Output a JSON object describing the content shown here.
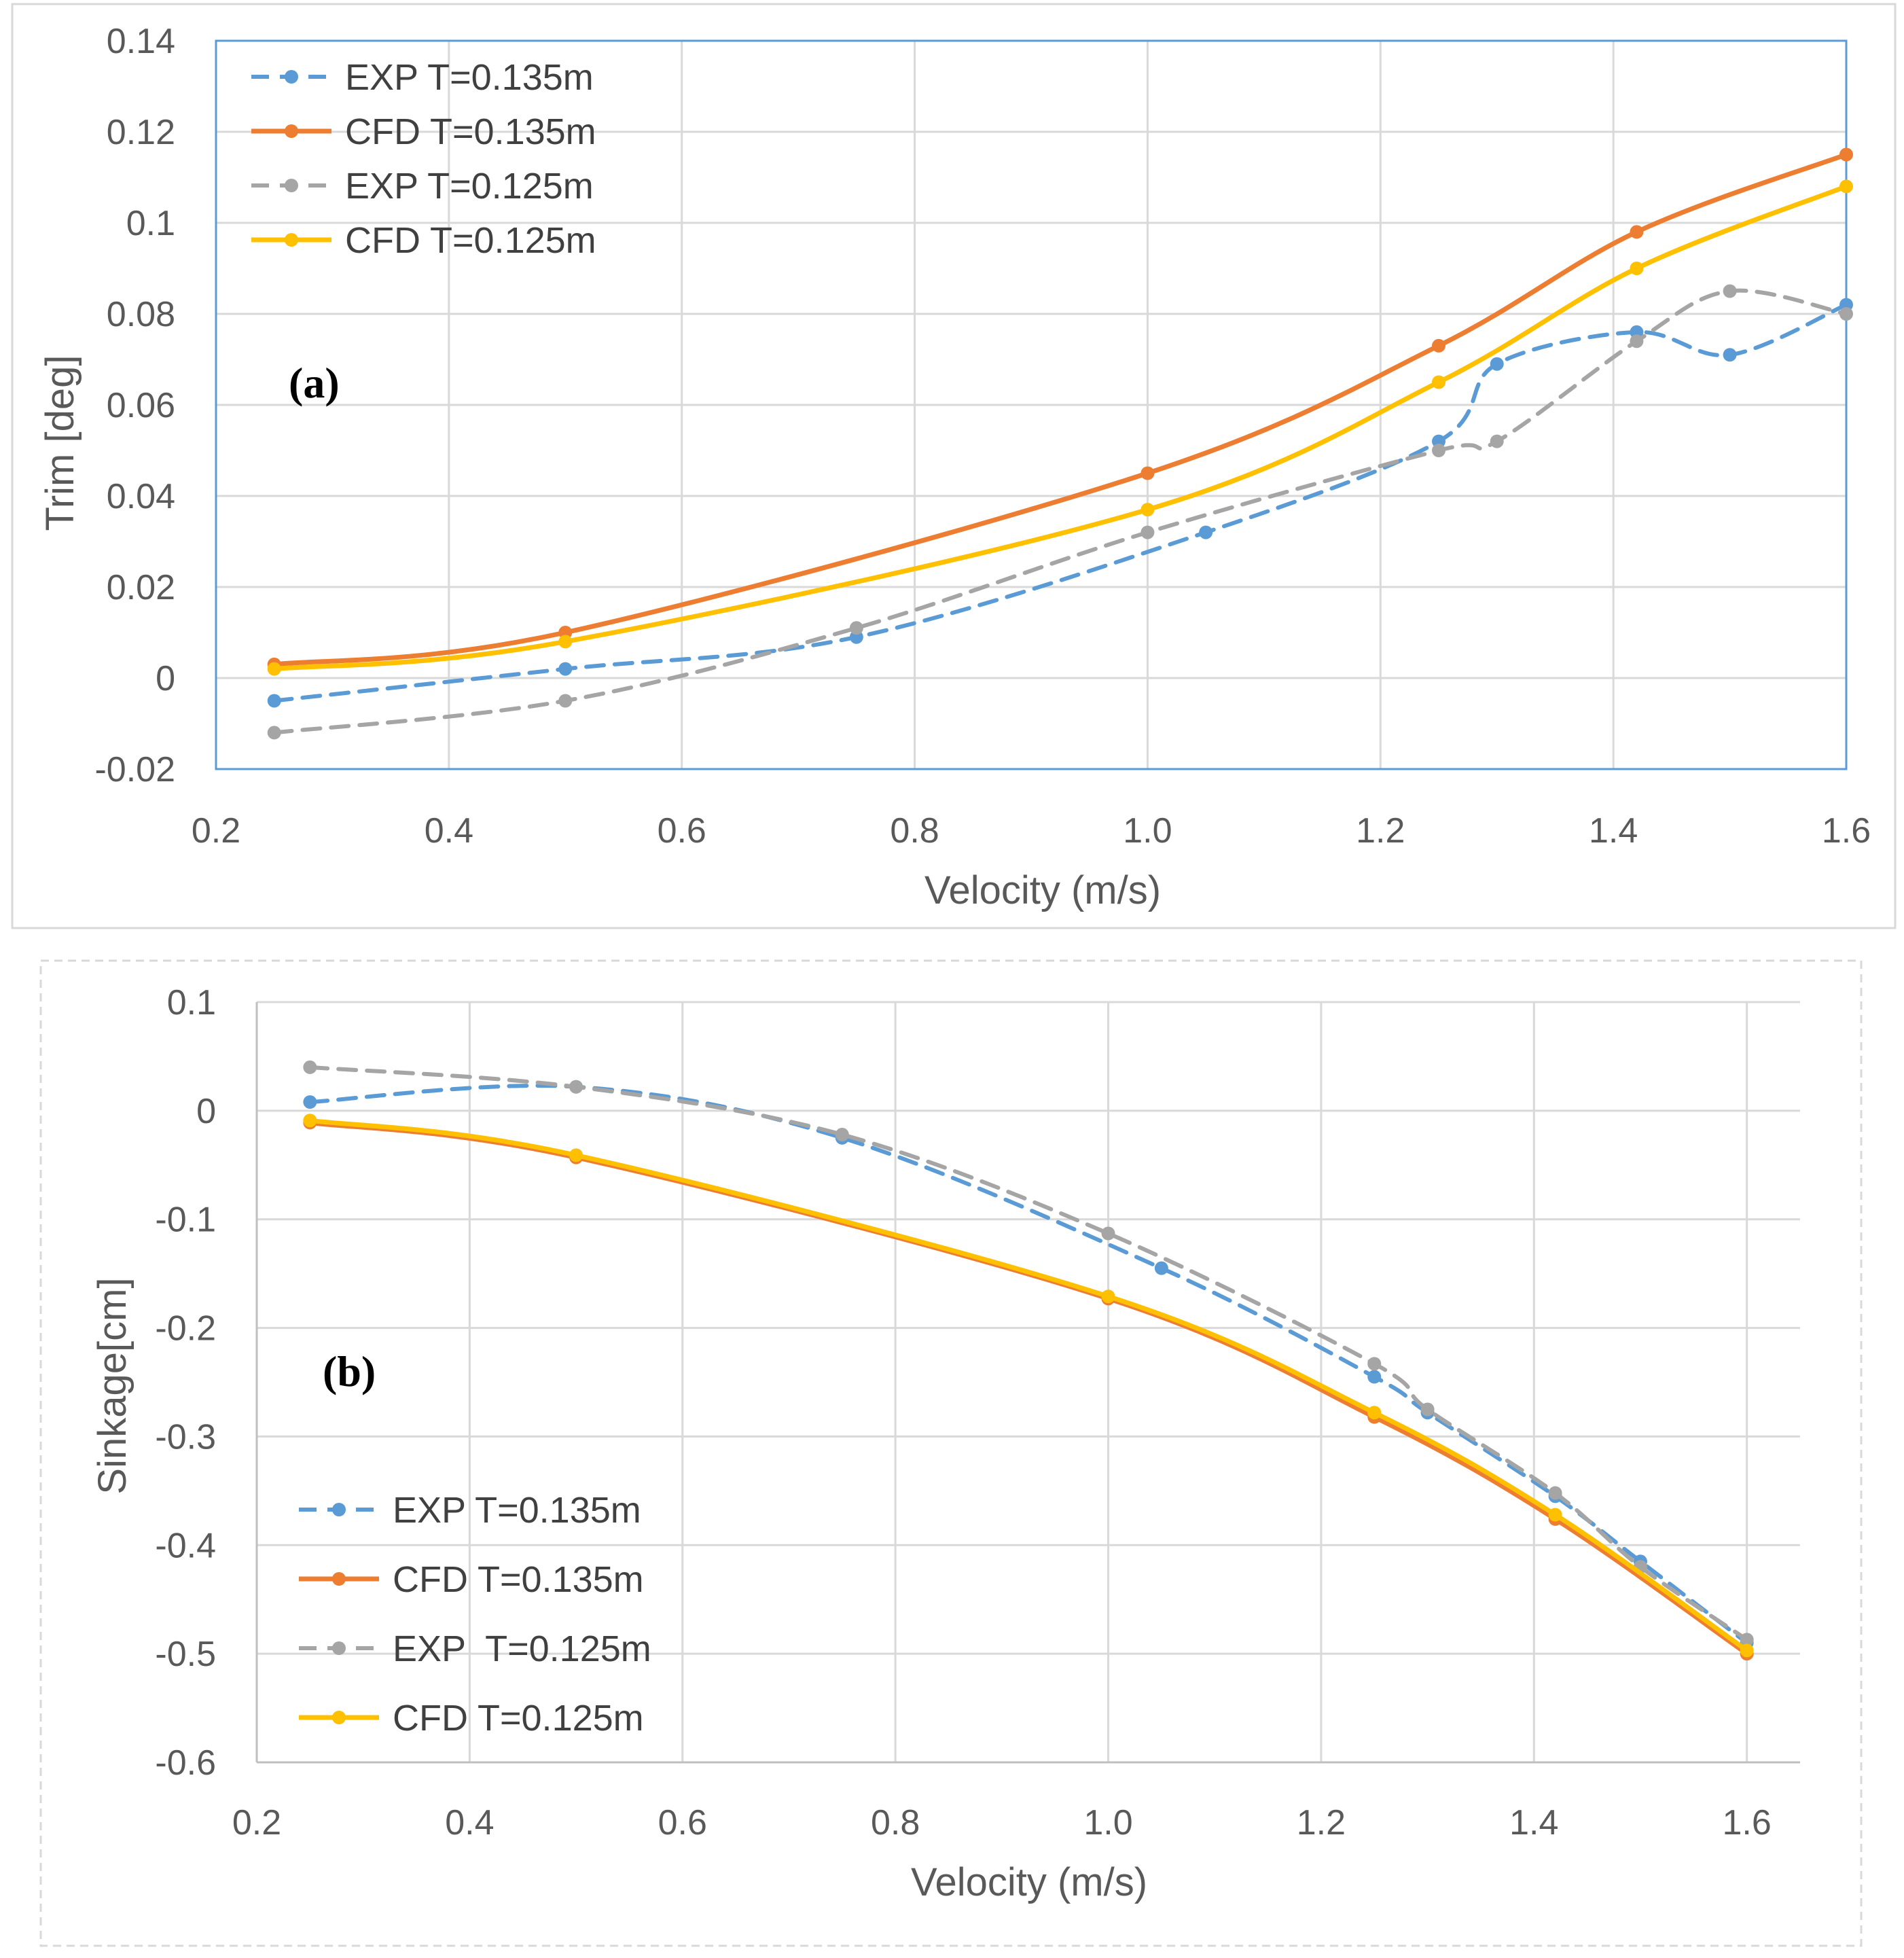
{
  "chart_data": [
    {
      "type": "line",
      "panel_label": "(a)",
      "title": "",
      "xlabel": "Velocity (m/s)",
      "ylabel": "Trim [deg]",
      "xlim": [
        0.2,
        1.6
      ],
      "ylim": [
        -0.02,
        0.14
      ],
      "x_ticks": [
        "0.2",
        "0.4",
        "0.6",
        "0.8",
        "1.0",
        "1.2",
        "1.4",
        "1.6"
      ],
      "y_ticks": [
        "-0.02",
        "0",
        "0.02",
        "0.04",
        "0.06",
        "0.08",
        "0.1",
        "0.12",
        "0.14"
      ],
      "grid": true,
      "legend_position": "top-left",
      "series": [
        {
          "name": "EXP T=0.135m",
          "color": "#5B9BD5",
          "dashed": true,
          "x": [
            0.25,
            0.5,
            0.75,
            1.05,
            1.25,
            1.3,
            1.42,
            1.5,
            1.6
          ],
          "y": [
            -0.005,
            0.002,
            0.009,
            0.032,
            0.052,
            0.069,
            0.076,
            0.071,
            0.082
          ]
        },
        {
          "name": "CFD T=0.135m",
          "color": "#ED7D31",
          "dashed": false,
          "x": [
            0.25,
            0.5,
            1.0,
            1.25,
            1.42,
            1.6
          ],
          "y": [
            0.003,
            0.01,
            0.045,
            0.073,
            0.098,
            0.115
          ]
        },
        {
          "name": "EXP T=0.125m",
          "color": "#A5A5A5",
          "dashed": true,
          "x": [
            0.25,
            0.5,
            0.75,
            1.0,
            1.25,
            1.3,
            1.42,
            1.5,
            1.6
          ],
          "y": [
            -0.012,
            -0.005,
            0.011,
            0.032,
            0.05,
            0.052,
            0.074,
            0.085,
            0.08
          ]
        },
        {
          "name": "CFD T=0.125m",
          "color": "#FFC000",
          "dashed": false,
          "x": [
            0.25,
            0.5,
            1.0,
            1.25,
            1.42,
            1.6
          ],
          "y": [
            0.002,
            0.008,
            0.037,
            0.065,
            0.09,
            0.108
          ]
        }
      ]
    },
    {
      "type": "line",
      "panel_label": "(b)",
      "title": "",
      "xlabel": "Velocity (m/s)",
      "ylabel": "Sinkage[cm]",
      "xlim": [
        0.2,
        1.65
      ],
      "ylim": [
        -0.6,
        0.1
      ],
      "x_ticks": [
        "0.2",
        "0.4",
        "0.6",
        "0.8",
        "1.0",
        "1.2",
        "1.4",
        "1.6"
      ],
      "y_ticks": [
        "-0.6",
        "-0.5",
        "-0.4",
        "-0.3",
        "-0.2",
        "-0.1",
        "0",
        "0.1"
      ],
      "grid": true,
      "legend_position": "bottom-left",
      "series": [
        {
          "name": "EXP T=0.135m",
          "color": "#5B9BD5",
          "dashed": true,
          "x": [
            0.25,
            0.5,
            0.75,
            1.05,
            1.25,
            1.3,
            1.42,
            1.5,
            1.6
          ],
          "y": [
            0.008,
            0.022,
            -0.025,
            -0.145,
            -0.245,
            -0.278,
            -0.355,
            -0.415,
            -0.49
          ]
        },
        {
          "name": "CFD T=0.135m",
          "color": "#ED7D31",
          "dashed": false,
          "x": [
            0.25,
            0.5,
            1.0,
            1.25,
            1.42,
            1.6
          ],
          "y": [
            -0.011,
            -0.043,
            -0.173,
            -0.282,
            -0.376,
            -0.5
          ]
        },
        {
          "name": "EXP  T=0.125m",
          "color": "#A5A5A5",
          "dashed": true,
          "x": [
            0.25,
            0.5,
            0.75,
            1.0,
            1.25,
            1.3,
            1.42,
            1.5,
            1.6
          ],
          "y": [
            0.04,
            0.022,
            -0.022,
            -0.113,
            -0.233,
            -0.275,
            -0.352,
            -0.42,
            -0.487
          ]
        },
        {
          "name": "CFD T=0.125m",
          "color": "#FFC000",
          "dashed": false,
          "x": [
            0.25,
            0.5,
            1.0,
            1.25,
            1.42,
            1.6
          ],
          "y": [
            -0.009,
            -0.041,
            -0.171,
            -0.278,
            -0.372,
            -0.497
          ]
        }
      ]
    }
  ]
}
